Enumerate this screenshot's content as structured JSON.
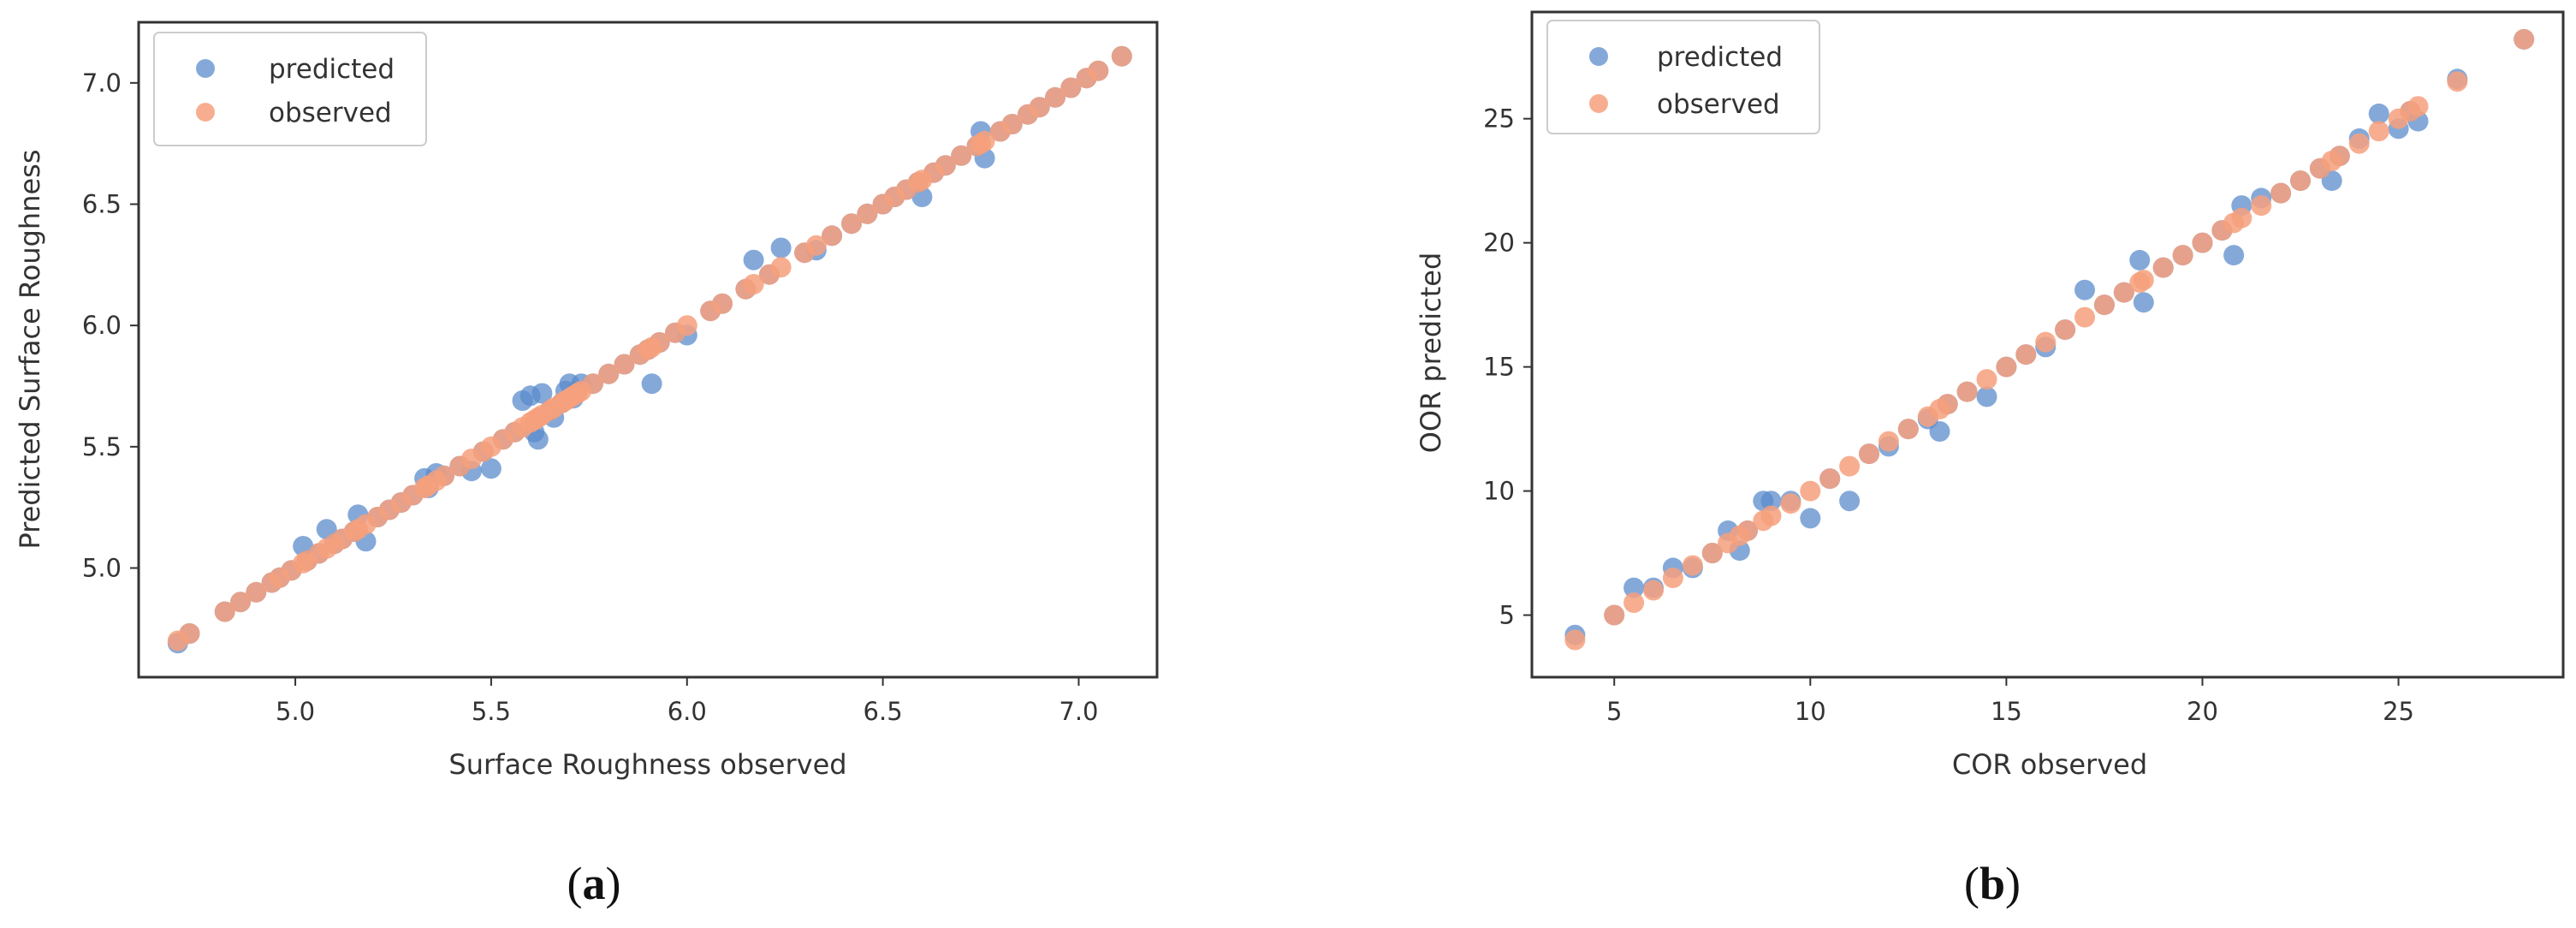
{
  "chart_data": [
    {
      "type": "scatter",
      "panel_label": "a",
      "title": "",
      "xlabel": "Surface Roughness observed",
      "ylabel": "Predicted Surface Roughness",
      "xlim": [
        4.6,
        7.2
      ],
      "ylim": [
        4.55,
        7.25
      ],
      "xticks": [
        5.0,
        5.5,
        6.0,
        6.5,
        7.0
      ],
      "yticks": [
        5.0,
        5.5,
        6.0,
        6.5,
        7.0
      ],
      "tick_format": "1",
      "grid": false,
      "legend": "top-left",
      "series": [
        {
          "name": "predicted",
          "color": "#5b8ccc",
          "x": [
            4.7,
            4.73,
            4.82,
            4.86,
            4.9,
            4.94,
            4.96,
            4.99,
            5.02,
            5.03,
            5.06,
            5.08,
            5.1,
            5.12,
            5.15,
            5.16,
            5.18,
            5.21,
            5.24,
            5.27,
            5.3,
            5.33,
            5.34,
            5.36,
            5.38,
            5.42,
            5.45,
            5.48,
            5.5,
            5.53,
            5.56,
            5.58,
            5.6,
            5.61,
            5.62,
            5.63,
            5.65,
            5.66,
            5.68,
            5.69,
            5.7,
            5.71,
            5.72,
            5.73,
            5.76,
            5.8,
            5.84,
            5.88,
            5.9,
            5.91,
            5.93,
            5.97,
            6.0,
            6.06,
            6.09,
            6.15,
            6.17,
            6.21,
            6.24,
            6.3,
            6.33,
            6.37,
            6.42,
            6.46,
            6.5,
            6.53,
            6.56,
            6.59,
            6.6,
            6.63,
            6.66,
            6.7,
            6.74,
            6.75,
            6.76,
            6.8,
            6.83,
            6.87,
            6.9,
            6.94,
            6.98,
            7.02,
            7.05,
            7.11
          ],
          "y": [
            4.69,
            4.73,
            4.82,
            4.86,
            4.9,
            4.94,
            4.96,
            4.99,
            5.09,
            5.03,
            5.06,
            5.16,
            5.1,
            5.12,
            5.15,
            5.22,
            5.11,
            5.21,
            5.24,
            5.27,
            5.3,
            5.37,
            5.33,
            5.39,
            5.38,
            5.42,
            5.4,
            5.48,
            5.41,
            5.53,
            5.56,
            5.69,
            5.71,
            5.56,
            5.53,
            5.72,
            5.65,
            5.62,
            5.68,
            5.73,
            5.76,
            5.7,
            5.73,
            5.76,
            5.76,
            5.8,
            5.84,
            5.88,
            5.9,
            5.76,
            5.93,
            5.97,
            5.96,
            6.06,
            6.09,
            6.15,
            6.27,
            6.21,
            6.32,
            6.3,
            6.31,
            6.37,
            6.42,
            6.46,
            6.5,
            6.53,
            6.56,
            6.59,
            6.53,
            6.63,
            6.66,
            6.7,
            6.74,
            6.8,
            6.69,
            6.8,
            6.83,
            6.87,
            6.9,
            6.94,
            6.98,
            7.02,
            7.05,
            7.11
          ]
        },
        {
          "name": "observed",
          "color": "#f6a07c",
          "x": [
            4.7,
            4.73,
            4.82,
            4.86,
            4.9,
            4.94,
            4.96,
            4.99,
            5.02,
            5.03,
            5.06,
            5.08,
            5.1,
            5.12,
            5.15,
            5.16,
            5.18,
            5.21,
            5.24,
            5.27,
            5.3,
            5.33,
            5.34,
            5.36,
            5.38,
            5.42,
            5.45,
            5.48,
            5.5,
            5.53,
            5.56,
            5.58,
            5.6,
            5.61,
            5.62,
            5.63,
            5.65,
            5.66,
            5.68,
            5.69,
            5.7,
            5.71,
            5.72,
            5.73,
            5.76,
            5.8,
            5.84,
            5.88,
            5.9,
            5.91,
            5.93,
            5.97,
            6.0,
            6.06,
            6.09,
            6.15,
            6.17,
            6.21,
            6.24,
            6.3,
            6.33,
            6.37,
            6.42,
            6.46,
            6.5,
            6.53,
            6.56,
            6.59,
            6.6,
            6.63,
            6.66,
            6.7,
            6.74,
            6.75,
            6.76,
            6.8,
            6.83,
            6.87,
            6.9,
            6.94,
            6.98,
            7.02,
            7.05,
            7.11
          ],
          "y": [
            4.7,
            4.73,
            4.82,
            4.86,
            4.9,
            4.94,
            4.96,
            4.99,
            5.02,
            5.03,
            5.06,
            5.08,
            5.1,
            5.12,
            5.15,
            5.16,
            5.18,
            5.21,
            5.24,
            5.27,
            5.3,
            5.33,
            5.34,
            5.36,
            5.38,
            5.42,
            5.45,
            5.48,
            5.5,
            5.53,
            5.56,
            5.58,
            5.6,
            5.61,
            5.62,
            5.63,
            5.65,
            5.66,
            5.68,
            5.69,
            5.7,
            5.71,
            5.72,
            5.73,
            5.76,
            5.8,
            5.84,
            5.88,
            5.9,
            5.91,
            5.93,
            5.97,
            6.0,
            6.06,
            6.09,
            6.15,
            6.17,
            6.21,
            6.24,
            6.3,
            6.33,
            6.37,
            6.42,
            6.46,
            6.5,
            6.53,
            6.56,
            6.59,
            6.6,
            6.63,
            6.66,
            6.7,
            6.74,
            6.75,
            6.76,
            6.8,
            6.83,
            6.87,
            6.9,
            6.94,
            6.98,
            7.02,
            7.05,
            7.11
          ]
        }
      ]
    },
    {
      "type": "scatter",
      "panel_label": "b",
      "title": "",
      "xlabel": "COR observed",
      "ylabel": "OOR predicted",
      "xlim": [
        2.9,
        29.2
      ],
      "ylim": [
        2.5,
        29.3
      ],
      "xticks": [
        5,
        10,
        15,
        20,
        25
      ],
      "yticks": [
        5,
        10,
        15,
        20,
        25
      ],
      "tick_format": "0",
      "grid": false,
      "legend": "top-left",
      "series": [
        {
          "name": "predicted",
          "color": "#5b8ccc",
          "x": [
            4.0,
            5.0,
            5.5,
            6.0,
            6.5,
            7.0,
            7.5,
            7.9,
            8.2,
            8.4,
            8.8,
            9.0,
            9.5,
            10.0,
            10.5,
            11.0,
            11.5,
            12.0,
            12.5,
            13.0,
            13.3,
            13.5,
            14.0,
            14.5,
            15.0,
            15.5,
            16.0,
            16.5,
            17.0,
            17.5,
            18.0,
            18.4,
            18.5,
            19.0,
            19.5,
            20.0,
            20.5,
            20.8,
            21.0,
            21.5,
            22.0,
            22.5,
            23.0,
            23.3,
            23.5,
            24.0,
            24.5,
            25.0,
            25.3,
            25.5,
            26.5,
            28.2
          ],
          "y": [
            4.2,
            5.0,
            6.1,
            6.1,
            6.9,
            6.9,
            7.5,
            8.4,
            7.6,
            8.4,
            9.6,
            9.6,
            9.6,
            8.9,
            10.5,
            9.6,
            11.5,
            11.8,
            12.5,
            12.9,
            12.4,
            13.5,
            14.0,
            13.8,
            15.0,
            15.5,
            15.8,
            16.5,
            18.1,
            17.5,
            18.0,
            19.3,
            17.6,
            19.0,
            19.5,
            20.0,
            20.5,
            19.5,
            21.5,
            21.8,
            22.0,
            22.5,
            23.0,
            22.5,
            23.5,
            24.2,
            25.2,
            24.6,
            25.3,
            24.9,
            26.6,
            28.2
          ]
        },
        {
          "name": "observed",
          "color": "#f6a07c",
          "x": [
            4.0,
            5.0,
            5.5,
            6.0,
            6.5,
            7.0,
            7.5,
            7.9,
            8.2,
            8.4,
            8.8,
            9.0,
            9.5,
            10.0,
            10.5,
            11.0,
            11.5,
            12.0,
            12.5,
            13.0,
            13.3,
            13.5,
            14.0,
            14.5,
            15.0,
            15.5,
            16.0,
            16.5,
            17.0,
            17.5,
            18.0,
            18.4,
            18.5,
            19.0,
            19.5,
            20.0,
            20.5,
            20.8,
            21.0,
            21.5,
            22.0,
            22.5,
            23.0,
            23.3,
            23.5,
            24.0,
            24.5,
            25.0,
            25.3,
            25.5,
            26.5,
            28.2
          ],
          "y": [
            4.0,
            5.0,
            5.5,
            6.0,
            6.5,
            7.0,
            7.5,
            7.9,
            8.2,
            8.4,
            8.8,
            9.0,
            9.5,
            10.0,
            10.5,
            11.0,
            11.5,
            12.0,
            12.5,
            13.0,
            13.3,
            13.5,
            14.0,
            14.5,
            15.0,
            15.5,
            16.0,
            16.5,
            17.0,
            17.5,
            18.0,
            18.4,
            18.5,
            19.0,
            19.5,
            20.0,
            20.5,
            20.8,
            21.0,
            21.5,
            22.0,
            22.5,
            23.0,
            23.3,
            23.5,
            24.0,
            24.5,
            25.0,
            25.3,
            25.5,
            26.5,
            28.2
          ]
        }
      ]
    }
  ]
}
